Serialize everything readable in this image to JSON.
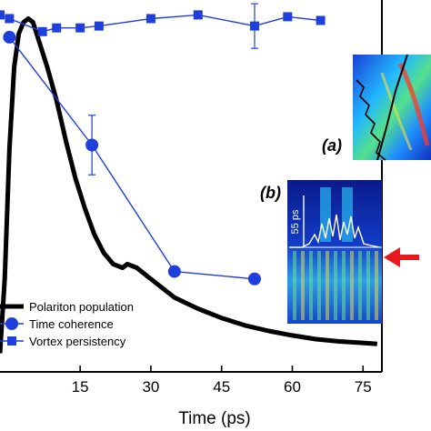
{
  "chart_data": {
    "type": "line",
    "xlabel": "Time (ps)",
    "ylabel": "",
    "xlim": [
      -2,
      79
    ],
    "x_ticks": [
      "15",
      "30",
      "45",
      "60",
      "75"
    ],
    "grid": false,
    "legend_placement": "bottom-left",
    "series": [
      {
        "name": "Polariton population",
        "color": "#000000",
        "marker": "none",
        "points": [
          [
            -2,
            95
          ],
          [
            -1,
            75
          ],
          [
            0,
            40
          ],
          [
            1,
            18
          ],
          [
            2,
            9
          ],
          [
            3,
            6
          ],
          [
            4,
            5
          ],
          [
            5,
            6
          ],
          [
            6,
            10
          ],
          [
            8,
            18
          ],
          [
            10,
            27
          ],
          [
            12,
            38
          ],
          [
            14,
            48
          ],
          [
            16,
            56
          ],
          [
            18,
            63
          ],
          [
            20,
            68
          ],
          [
            22,
            71
          ],
          [
            24,
            72
          ],
          [
            25,
            71
          ],
          [
            27,
            72
          ],
          [
            30,
            75
          ],
          [
            35,
            80
          ],
          [
            40,
            83
          ],
          [
            45,
            85.5
          ],
          [
            50,
            87.5
          ],
          [
            55,
            89
          ],
          [
            60,
            90.2
          ],
          [
            65,
            91.2
          ],
          [
            70,
            91.8
          ],
          [
            75,
            92.2
          ],
          [
            78,
            92.5
          ]
        ]
      },
      {
        "name": "Time coherence",
        "color": "#1f3fdc",
        "marker": "circle",
        "points": [
          [
            0,
            10
          ],
          [
            17.5,
            39
          ],
          [
            35,
            73
          ],
          [
            52,
            75
          ]
        ],
        "error_bars": [
          null,
          8,
          null,
          null
        ]
      },
      {
        "name": "Vortex persistency",
        "color": "#1f3fdc",
        "marker": "square",
        "points": [
          [
            -2,
            4
          ],
          [
            0,
            5
          ],
          [
            7,
            8.5
          ],
          [
            10,
            7.5
          ],
          [
            15,
            7.5
          ],
          [
            19,
            7
          ],
          [
            30,
            5
          ],
          [
            40,
            4
          ],
          [
            52,
            7
          ],
          [
            59,
            4.5
          ],
          [
            66,
            5.5
          ]
        ],
        "error_bars": [
          null,
          null,
          null,
          null,
          null,
          null,
          null,
          null,
          6,
          null,
          null
        ]
      }
    ],
    "insets": [
      {
        "label": "(a)"
      },
      {
        "label": "(b)",
        "annotation": "55 ps"
      }
    ]
  }
}
